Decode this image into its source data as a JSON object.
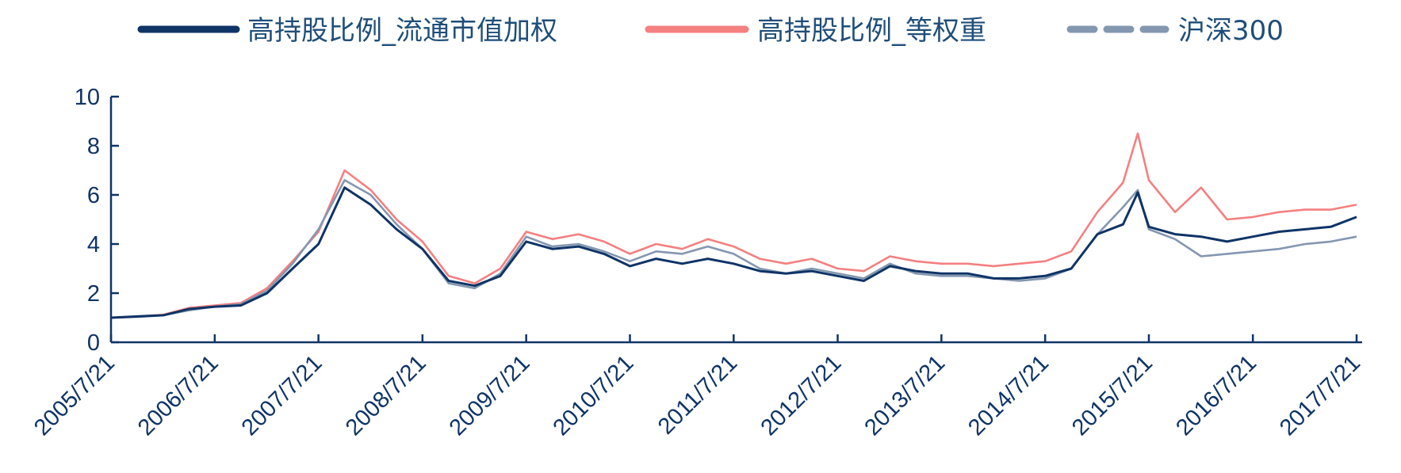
{
  "chart_data": {
    "type": "line",
    "title": "",
    "xlabel": "",
    "ylabel": "",
    "ylim": [
      0,
      10
    ],
    "yticks": [
      "0",
      "2",
      "4",
      "6",
      "8",
      "10"
    ],
    "grid": false,
    "legend_position": "top",
    "x_tick_labels": [
      "2005/7/21",
      "2006/7/21",
      "2007/7/21",
      "2008/7/21",
      "2009/7/21",
      "2010/7/21",
      "2011/7/21",
      "2012/7/21",
      "2013/7/21",
      "2014/7/21",
      "2015/7/21",
      "2016/7/21",
      "2017/7/21"
    ],
    "x": [
      "2005/7/21",
      "2005/10/21",
      "2006/1/21",
      "2006/4/21",
      "2006/7/21",
      "2006/10/21",
      "2007/1/21",
      "2007/4/21",
      "2007/7/21",
      "2007/10/21",
      "2008/1/21",
      "2008/4/21",
      "2008/7/21",
      "2008/10/21",
      "2009/1/21",
      "2009/4/21",
      "2009/7/21",
      "2009/10/21",
      "2010/1/21",
      "2010/4/21",
      "2010/7/21",
      "2010/10/21",
      "2011/1/21",
      "2011/4/21",
      "2011/7/21",
      "2011/10/21",
      "2012/1/21",
      "2012/4/21",
      "2012/7/21",
      "2012/10/21",
      "2013/1/21",
      "2013/4/21",
      "2013/7/21",
      "2013/10/21",
      "2014/1/21",
      "2014/4/21",
      "2014/7/21",
      "2014/10/21",
      "2015/1/21",
      "2015/4/21",
      "2015/6/12",
      "2015/7/21",
      "2015/10/21",
      "2016/1/21",
      "2016/4/21",
      "2016/7/21",
      "2016/10/21",
      "2017/1/21",
      "2017/4/21",
      "2017/7/21"
    ],
    "series": [
      {
        "name": "高持股比例_流通市值加权",
        "color": "#0f3466",
        "dash": "solid",
        "values": [
          1.0,
          1.05,
          1.1,
          1.35,
          1.45,
          1.5,
          2.0,
          3.0,
          4.0,
          6.3,
          5.6,
          4.6,
          3.8,
          2.5,
          2.3,
          2.7,
          4.1,
          3.8,
          3.9,
          3.6,
          3.1,
          3.4,
          3.2,
          3.4,
          3.2,
          2.9,
          2.8,
          2.9,
          2.7,
          2.5,
          3.1,
          2.9,
          2.8,
          2.8,
          2.6,
          2.6,
          2.7,
          3.0,
          4.4,
          4.8,
          6.1,
          4.7,
          4.4,
          4.3,
          4.1,
          4.3,
          4.5,
          4.6,
          4.7,
          5.1
        ]
      },
      {
        "name": "高持股比例_等权重",
        "color": "#f48080",
        "dash": "solid",
        "values": [
          1.0,
          1.05,
          1.12,
          1.4,
          1.5,
          1.6,
          2.2,
          3.3,
          4.5,
          7.0,
          6.2,
          5.0,
          4.1,
          2.7,
          2.4,
          3.0,
          4.5,
          4.2,
          4.4,
          4.1,
          3.6,
          4.0,
          3.8,
          4.2,
          3.9,
          3.4,
          3.2,
          3.4,
          3.0,
          2.9,
          3.5,
          3.3,
          3.2,
          3.2,
          3.1,
          3.2,
          3.3,
          3.7,
          5.3,
          6.5,
          8.5,
          6.6,
          5.3,
          6.3,
          5.0,
          5.1,
          5.3,
          5.4,
          5.4,
          5.6
        ]
      },
      {
        "name": "沪深300",
        "color": "#8497b0",
        "dash": "dashed",
        "values": [
          1.0,
          1.03,
          1.1,
          1.3,
          1.45,
          1.55,
          2.1,
          3.2,
          4.6,
          6.6,
          6.0,
          4.8,
          3.8,
          2.4,
          2.2,
          2.8,
          4.3,
          3.9,
          4.0,
          3.7,
          3.3,
          3.7,
          3.6,
          3.9,
          3.6,
          3.0,
          2.8,
          3.0,
          2.8,
          2.6,
          3.2,
          2.8,
          2.7,
          2.7,
          2.6,
          2.5,
          2.6,
          3.0,
          4.4,
          5.5,
          6.2,
          4.6,
          4.2,
          3.5,
          3.6,
          3.7,
          3.8,
          4.0,
          4.1,
          4.3
        ]
      }
    ]
  }
}
